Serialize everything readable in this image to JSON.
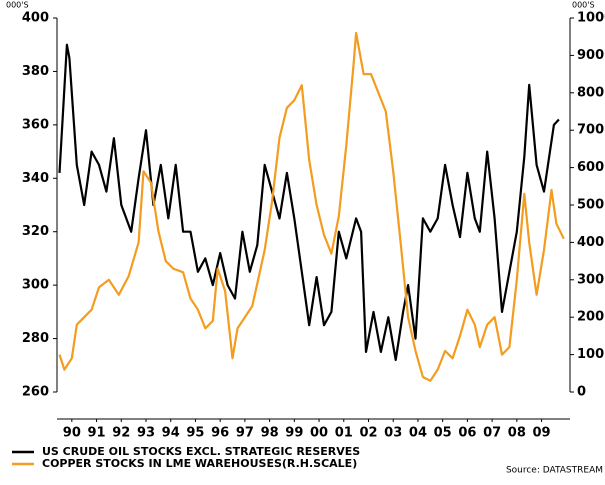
{
  "chart_data": {
    "type": "line",
    "y_unit": "000'S",
    "y2_unit": "000'S",
    "xlim": [
      1989.9,
      2010.65
    ],
    "xticks": [
      {
        "value": 1990.5,
        "label": "90"
      },
      {
        "value": 1991.5,
        "label": "91"
      },
      {
        "value": 1992.5,
        "label": "92"
      },
      {
        "value": 1993.5,
        "label": "93"
      },
      {
        "value": 1994.5,
        "label": "94"
      },
      {
        "value": 1995.5,
        "label": "95"
      },
      {
        "value": 1996.5,
        "label": "96"
      },
      {
        "value": 1997.5,
        "label": "97"
      },
      {
        "value": 1998.5,
        "label": "98"
      },
      {
        "value": 1999.5,
        "label": "99"
      },
      {
        "value": 2000.5,
        "label": "00"
      },
      {
        "value": 2001.5,
        "label": "01"
      },
      {
        "value": 2002.5,
        "label": "02"
      },
      {
        "value": 2003.5,
        "label": "03"
      },
      {
        "value": 2004.5,
        "label": "04"
      },
      {
        "value": 2005.5,
        "label": "05"
      },
      {
        "value": 2006.5,
        "label": "06"
      },
      {
        "value": 2007.5,
        "label": "07"
      },
      {
        "value": 2008.5,
        "label": "08"
      },
      {
        "value": 2009.5,
        "label": "09"
      }
    ],
    "ylim": [
      260,
      400
    ],
    "yticks": [
      260,
      280,
      300,
      320,
      340,
      360,
      380,
      400
    ],
    "y2lim": [
      0,
      1000
    ],
    "y2ticks": [
      0,
      100,
      200,
      300,
      400,
      500,
      600,
      700,
      800,
      900,
      1000
    ],
    "series": [
      {
        "name": "US CRUDE OIL STOCKS EXCL. STRATEGIC RESERVES",
        "color": "#000000",
        "x": [
          1990.0,
          1990.3,
          1990.4,
          1990.7,
          1991.0,
          1991.3,
          1991.6,
          1991.9,
          1992.2,
          1992.5,
          1992.9,
          1993.2,
          1993.5,
          1993.8,
          1994.1,
          1994.4,
          1994.7,
          1995.0,
          1995.3,
          1995.6,
          1995.9,
          1996.2,
          1996.5,
          1996.8,
          1997.1,
          1997.4,
          1997.7,
          1998.0,
          1998.3,
          1998.6,
          1998.9,
          1999.2,
          1999.5,
          1999.8,
          2000.1,
          2000.4,
          2000.7,
          2001.0,
          2001.3,
          2001.6,
          2002.0,
          2002.2,
          2002.4,
          2002.7,
          2003.0,
          2003.3,
          2003.6,
          2003.9,
          2004.1,
          2004.4,
          2004.7,
          2005.0,
          2005.3,
          2005.6,
          2005.9,
          2006.2,
          2006.5,
          2006.8,
          2007.0,
          2007.3,
          2007.6,
          2007.9,
          2008.2,
          2008.5,
          2008.8,
          2009.0,
          2009.3,
          2009.6,
          2010.0,
          2010.2
        ],
        "values": [
          342,
          390,
          385,
          345,
          330,
          350,
          345,
          335,
          355,
          330,
          320,
          340,
          358,
          330,
          345,
          325,
          345,
          320,
          320,
          305,
          310,
          300,
          312,
          300,
          295,
          320,
          305,
          315,
          345,
          335,
          325,
          342,
          325,
          305,
          285,
          303,
          285,
          290,
          320,
          310,
          325,
          320,
          275,
          290,
          275,
          288,
          272,
          290,
          300,
          280,
          325,
          320,
          325,
          345,
          330,
          318,
          342,
          325,
          320,
          350,
          325,
          290,
          305,
          320,
          348,
          375,
          345,
          335,
          360,
          362
        ]
      },
      {
        "name": "COPPER STOCKS IN LME WAREHOUSES(R.H.SCALE)",
        "color": "#f39c1e",
        "axis": "y2",
        "x": [
          1990.0,
          1990.2,
          1990.5,
          1990.7,
          1991.0,
          1991.3,
          1991.6,
          1992.0,
          1992.4,
          1992.8,
          1993.2,
          1993.4,
          1993.7,
          1994.0,
          1994.3,
          1994.6,
          1995.0,
          1995.3,
          1995.6,
          1995.9,
          1996.2,
          1996.4,
          1996.7,
          1997.0,
          1997.2,
          1997.5,
          1997.8,
          1998.0,
          1998.3,
          1998.6,
          1998.9,
          1999.2,
          1999.5,
          1999.8,
          2000.1,
          2000.4,
          2000.7,
          2001.0,
          2001.3,
          2001.6,
          2001.9,
          2002.0,
          2002.3,
          2002.6,
          2002.9,
          2003.2,
          2003.5,
          2003.8,
          2004.1,
          2004.4,
          2004.7,
          2005.0,
          2005.3,
          2005.6,
          2005.9,
          2006.2,
          2006.5,
          2006.8,
          2007.0,
          2007.3,
          2007.6,
          2007.9,
          2008.2,
          2008.5,
          2008.8,
          2009.0,
          2009.3,
          2009.6,
          2009.9,
          2010.1,
          2010.4
        ],
        "values": [
          100,
          60,
          90,
          180,
          200,
          220,
          280,
          300,
          260,
          310,
          400,
          590,
          560,
          430,
          350,
          330,
          320,
          250,
          220,
          170,
          190,
          330,
          270,
          90,
          170,
          200,
          230,
          290,
          380,
          510,
          680,
          760,
          780,
          820,
          620,
          500,
          420,
          370,
          470,
          660,
          880,
          960,
          850,
          850,
          800,
          750,
          590,
          400,
          200,
          110,
          40,
          30,
          60,
          110,
          90,
          150,
          220,
          180,
          120,
          180,
          200,
          100,
          120,
          300,
          530,
          400,
          260,
          380,
          540,
          450,
          410
        ]
      }
    ],
    "source": "Source: DATASTREAM"
  }
}
